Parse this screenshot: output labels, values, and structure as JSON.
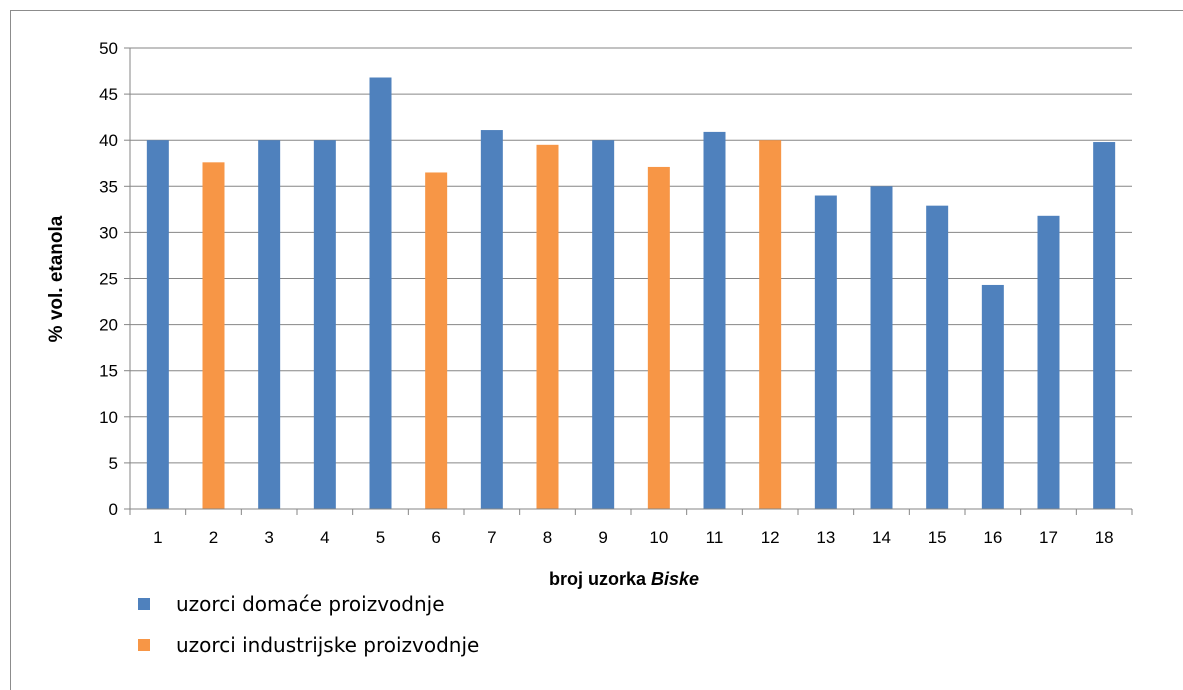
{
  "chart_data": {
    "type": "bar",
    "categories": [
      "1",
      "2",
      "3",
      "4",
      "5",
      "6",
      "7",
      "8",
      "9",
      "10",
      "11",
      "12",
      "13",
      "14",
      "15",
      "16",
      "17",
      "18"
    ],
    "values": [
      40.0,
      37.6,
      40.0,
      40.0,
      46.8,
      36.5,
      41.1,
      39.5,
      40.0,
      37.1,
      40.9,
      40.0,
      34.0,
      35.0,
      32.9,
      24.3,
      31.8,
      39.8
    ],
    "groups": [
      "domace",
      "industrijske",
      "domace",
      "domace",
      "domace",
      "industrijske",
      "domace",
      "industrijske",
      "domace",
      "industrijske",
      "domace",
      "industrijske",
      "domace",
      "domace",
      "domace",
      "domace",
      "domace",
      "domace"
    ],
    "series": [
      {
        "key": "domace",
        "name": "uzorci domaće proizvodnje",
        "color": "#4f81bd"
      },
      {
        "key": "industrijske",
        "name": "uzorci industrijske proizvodnje",
        "color": "#f79646"
      }
    ],
    "xlabel": "broj uzorka",
    "xlabel_italic": "Biske",
    "ylabel": "% vol. etanola",
    "ylim": [
      0,
      50
    ],
    "yticks": [
      0,
      5,
      10,
      15,
      20,
      25,
      30,
      35,
      40,
      45,
      50
    ],
    "grid": true,
    "legend_position": "bottom-left"
  }
}
